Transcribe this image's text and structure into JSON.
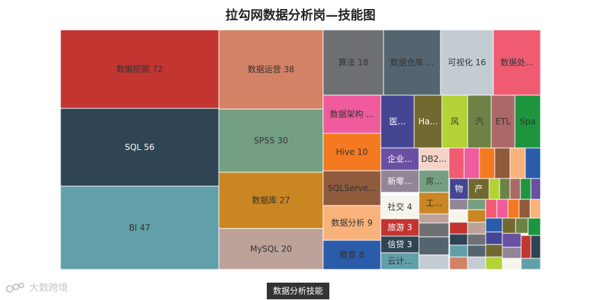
{
  "chart_data": {
    "type": "treemap",
    "title": "拉勾网数据分析岗—技能图",
    "breadcrumb": "数据分析技能",
    "watermark": "大数跨境",
    "items": [
      {
        "label": "数据挖掘 72",
        "color": "#c23531"
      },
      {
        "label": "SQL 56",
        "color": "#2f4554"
      },
      {
        "label": "BI 47",
        "color": "#61a0a8"
      },
      {
        "label": "数据运营 38",
        "color": "#d48265"
      },
      {
        "label": "SPSS 30",
        "color": "#749f83"
      },
      {
        "label": "数据库 27",
        "color": "#ca8622"
      },
      {
        "label": "MySQL 20",
        "color": "#bda29a"
      },
      {
        "label": "算法 18",
        "color": "#6e7074"
      },
      {
        "label": "数据仓库 ...",
        "color": "#546570"
      },
      {
        "label": "可视化 16",
        "color": "#c4ccd3"
      },
      {
        "label": "数据处...",
        "color": "#f05b72"
      },
      {
        "label": "数据架构 ...",
        "color": "#ef5b9c"
      },
      {
        "label": "Hive 10",
        "color": "#f47920"
      },
      {
        "label": "SQLServe...",
        "color": "#905a3d"
      },
      {
        "label": "数据分析 9",
        "color": "#fab27b"
      },
      {
        "label": "教育 8",
        "color": "#2a5caa"
      },
      {
        "label": "医...",
        "color": "#444693"
      },
      {
        "label": "Ha...",
        "color": "#726930"
      },
      {
        "label": "风",
        "color": "#b2d235"
      },
      {
        "label": "汽",
        "color": "#6d8346"
      },
      {
        "label": "ETL",
        "color": "#ac6767"
      },
      {
        "label": "Spa",
        "color": "#1d953f"
      },
      {
        "label": "企业...",
        "color": "#6950a1"
      },
      {
        "label": "DB2...",
        "color": "#f5d3c8"
      },
      {
        "label": "新零...",
        "color": "#918597"
      },
      {
        "label": "房...",
        "color": "#749f83"
      },
      {
        "label": "工...",
        "color": "#ca8622"
      },
      {
        "label": "社交 4",
        "color": "#f6f5ec"
      },
      {
        "label": "旅游 3",
        "color": "#c23531"
      },
      {
        "label": "信贷 3",
        "color": "#2f4554"
      },
      {
        "label": "云计...",
        "color": "#61a0a8"
      },
      {
        "label": "物",
        "color": "#444693"
      },
      {
        "label": "产",
        "color": "#726930"
      }
    ]
  }
}
